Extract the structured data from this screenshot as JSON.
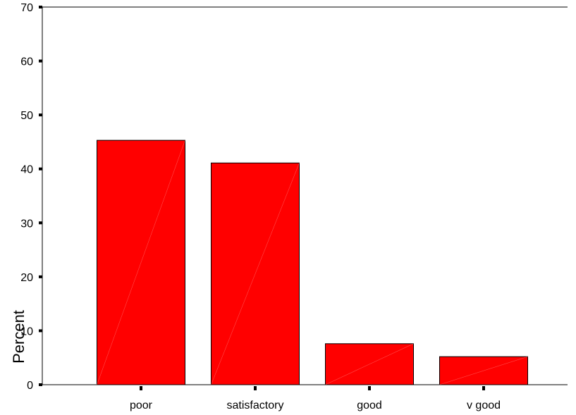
{
  "chart_data": {
    "type": "bar",
    "categories": [
      "poor",
      "satisfactory",
      "good",
      "v good"
    ],
    "values": [
      45.3,
      41.1,
      7.6,
      5.2
    ],
    "xlabel": "",
    "ylabel": "Percent",
    "ylim": [
      0,
      70
    ],
    "yticks": [
      0,
      10,
      20,
      30,
      40,
      50,
      60,
      70
    ],
    "grid": false,
    "bar_color": "#ff0000",
    "bar_edge_color": "#000000"
  }
}
